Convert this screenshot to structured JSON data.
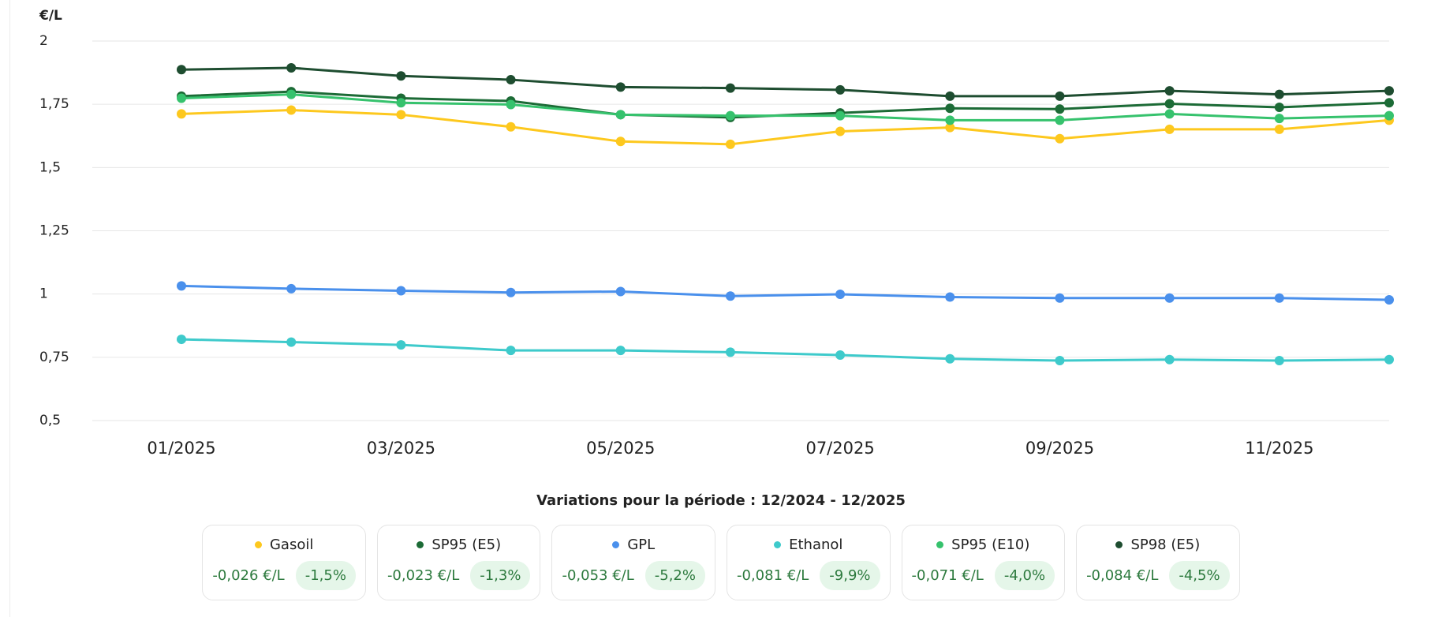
{
  "chart_data": {
    "type": "line",
    "y_label": "€/L",
    "categories": [
      "01/2025",
      null,
      "03/2025",
      null,
      "05/2025",
      null,
      "07/2025",
      null,
      "09/2025",
      null,
      "11/2025",
      null
    ],
    "ylim": [
      0.5,
      2
    ],
    "yticks": [
      {
        "value": 0.5,
        "label": "0,5"
      },
      {
        "value": 0.75,
        "label": "0,75"
      },
      1,
      {
        "value": 1.25,
        "label": "1,25"
      },
      {
        "value": 1.5,
        "label": "1,5"
      },
      {
        "value": 1.75,
        "label": "1,75"
      },
      2
    ],
    "grid": true,
    "series": [
      {
        "name": "Gasoil",
        "color": "#fdc81e",
        "values": [
          1.712,
          1.727,
          1.709,
          1.661,
          1.603,
          1.592,
          1.643,
          1.658,
          1.614,
          1.651,
          1.651,
          1.687
        ]
      },
      {
        "name": "SP95 (E5)",
        "color": "#1c6b36",
        "values": [
          1.782,
          1.8,
          1.774,
          1.763,
          1.709,
          1.698,
          1.716,
          1.734,
          1.731,
          1.752,
          1.738,
          1.756
        ]
      },
      {
        "name": "GPL",
        "color": "#4a90ec",
        "values": [
          1.032,
          1.021,
          1.013,
          1.006,
          1.01,
          0.992,
          0.999,
          0.988,
          0.984,
          0.984,
          0.984,
          0.977
        ]
      },
      {
        "name": "Ethanol",
        "color": "#3ecacb",
        "values": [
          0.821,
          0.81,
          0.799,
          0.777,
          0.777,
          0.77,
          0.759,
          0.744,
          0.737,
          0.741,
          0.737,
          0.741
        ]
      },
      {
        "name": "SP95 (E10)",
        "color": "#36c26d",
        "values": [
          1.774,
          1.789,
          1.756,
          1.749,
          1.709,
          1.705,
          1.705,
          1.687,
          1.687,
          1.712,
          1.694,
          1.705
        ]
      },
      {
        "name": "SP98 (E5)",
        "color": "#1e4d30",
        "values": [
          1.887,
          1.894,
          1.862,
          1.847,
          1.818,
          1.814,
          1.807,
          1.782,
          1.782,
          1.803,
          1.789,
          1.803
        ]
      }
    ]
  },
  "variations": {
    "title": "Variations pour la période : 12/2024 - 12/2025",
    "items": [
      {
        "amount": "-0,026 €/L",
        "percent": "-1,5%"
      },
      {
        "amount": "-0,023 €/L",
        "percent": "-1,3%"
      },
      {
        "amount": "-0,053 €/L",
        "percent": "-5,2%"
      },
      {
        "amount": "-0,081 €/L",
        "percent": "-9,9%"
      },
      {
        "amount": "-0,071 €/L",
        "percent": "-4,0%"
      },
      {
        "amount": "-0,084 €/L",
        "percent": "-4,5%"
      }
    ]
  }
}
